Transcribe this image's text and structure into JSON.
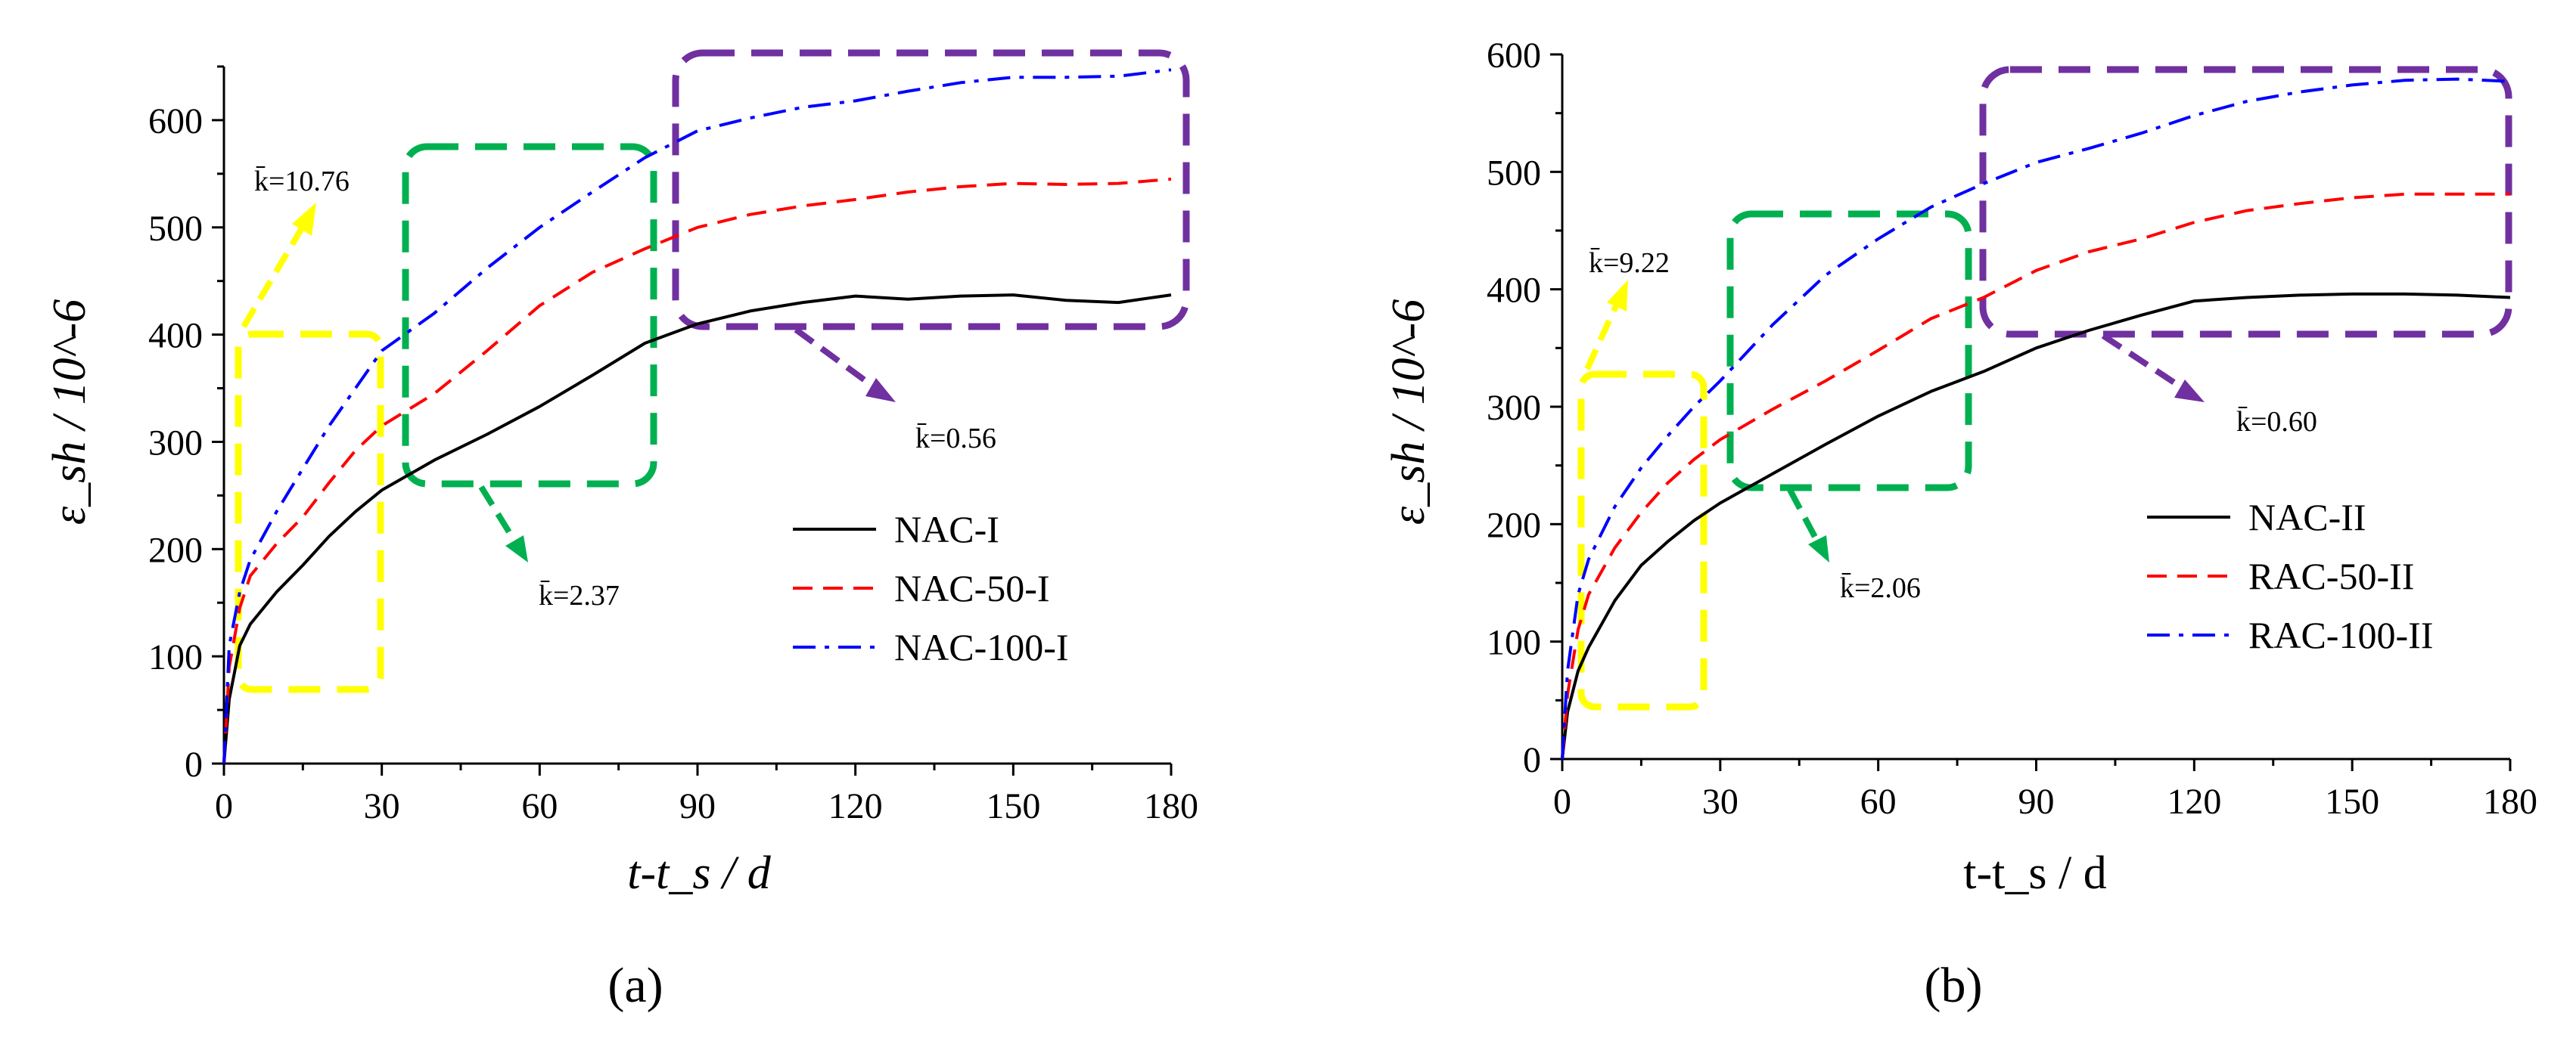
{
  "figure": {
    "panels": [
      "(a)",
      "(b)"
    ]
  },
  "chart_data": [
    {
      "id": "a",
      "type": "line",
      "panel_label": "(a)",
      "xlabel": "t-t_s / d",
      "ylabel": "ε_sh / 10^-6",
      "xlim": [
        0,
        180
      ],
      "ylim": [
        0,
        650
      ],
      "xticks": [
        0,
        30,
        60,
        90,
        120,
        150,
        180
      ],
      "yticks": [
        0,
        100,
        200,
        300,
        400,
        500,
        600
      ],
      "x": [
        0,
        1,
        3,
        5,
        10,
        15,
        20,
        25,
        30,
        40,
        50,
        60,
        70,
        80,
        90,
        100,
        110,
        120,
        130,
        140,
        150,
        160,
        170,
        180
      ],
      "series": [
        {
          "name": "NAC-I",
          "style": "solid",
          "color": "#000000",
          "values": [
            0,
            60,
            110,
            130,
            160,
            185,
            212,
            235,
            255,
            283,
            307,
            333,
            362,
            392,
            410,
            422,
            430,
            436,
            433,
            436,
            437,
            432,
            430,
            437
          ]
        },
        {
          "name": "NAC-50-I",
          "style": "dashed",
          "color": "#ff0000",
          "values": [
            0,
            90,
            145,
            175,
            205,
            230,
            262,
            292,
            315,
            345,
            385,
            427,
            458,
            480,
            500,
            512,
            520,
            526,
            533,
            538,
            541,
            540,
            541,
            545
          ]
        },
        {
          "name": "NAC-100-I",
          "style": "dashdot",
          "color": "#0000ff",
          "values": [
            0,
            110,
            160,
            190,
            235,
            275,
            315,
            350,
            385,
            420,
            462,
            500,
            533,
            565,
            590,
            602,
            612,
            618,
            627,
            635,
            640,
            640,
            641,
            647
          ]
        }
      ],
      "annotations": [
        {
          "text": "k̄=10.76",
          "color": "#ffff00"
        },
        {
          "text": "k̄=2.37",
          "color": "#00b050"
        },
        {
          "text": "k̄=0.56",
          "color": "#7030a0"
        }
      ]
    },
    {
      "id": "b",
      "type": "line",
      "panel_label": "(b)",
      "xlabel": "t-t_s / d",
      "ylabel": "ε_sh / 10^-6",
      "xlim": [
        0,
        180
      ],
      "ylim": [
        0,
        600
      ],
      "xticks": [
        0,
        30,
        60,
        90,
        120,
        150,
        180
      ],
      "yticks": [
        0,
        100,
        200,
        300,
        400,
        500,
        600
      ],
      "x": [
        0,
        1,
        3,
        5,
        10,
        15,
        20,
        25,
        30,
        40,
        50,
        60,
        70,
        80,
        90,
        100,
        110,
        120,
        130,
        140,
        150,
        160,
        170,
        180
      ],
      "series": [
        {
          "name": "NAC-II",
          "style": "solid",
          "color": "#000000",
          "values": [
            0,
            40,
            75,
            95,
            135,
            165,
            185,
            203,
            218,
            243,
            268,
            292,
            313,
            330,
            350,
            365,
            378,
            390,
            393,
            395,
            396,
            396,
            395,
            393
          ]
        },
        {
          "name": "RAC-50-II",
          "style": "dashed",
          "color": "#ff0000",
          "values": [
            0,
            55,
            110,
            140,
            180,
            210,
            235,
            255,
            272,
            298,
            322,
            348,
            375,
            393,
            416,
            432,
            443,
            457,
            467,
            473,
            478,
            481,
            481,
            481
          ]
        },
        {
          "name": "RAC-100-II",
          "style": "dashdot",
          "color": "#0000ff",
          "values": [
            0,
            75,
            140,
            170,
            215,
            248,
            275,
            300,
            322,
            370,
            412,
            443,
            470,
            490,
            508,
            520,
            533,
            548,
            560,
            568,
            574,
            578,
            579,
            577
          ]
        }
      ],
      "annotations": [
        {
          "text": "k̄=9.22",
          "color": "#ffff00"
        },
        {
          "text": "k̄=2.06",
          "color": "#00b050"
        },
        {
          "text": "k̄=0.60",
          "color": "#7030a0"
        }
      ]
    }
  ]
}
